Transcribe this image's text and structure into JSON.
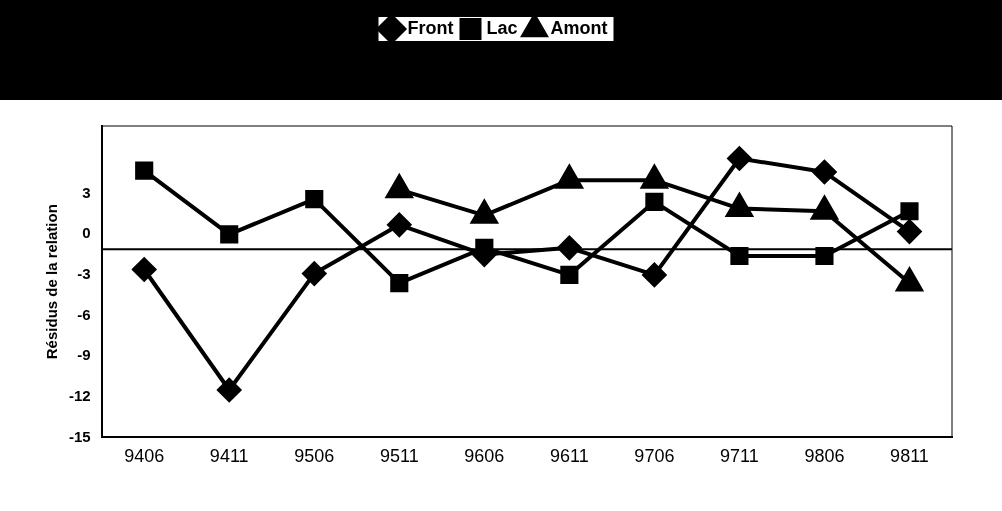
{
  "chart_data": {
    "type": "line",
    "ylabel": "Résidus de la relation",
    "categories": [
      "9406",
      "9411",
      "9506",
      "9511",
      "9606",
      "9611",
      "9706",
      "9711",
      "9806",
      "9811"
    ],
    "series": [
      {
        "name": "Front",
        "color": "#000000",
        "marker": "diamond",
        "values": [
          -2.6,
          -11.5,
          -2.9,
          0.7,
          -1.5,
          -1.0,
          -3.0,
          5.6,
          4.6,
          0.2
        ]
      },
      {
        "name": "Lac",
        "color": "#000000",
        "marker": "square",
        "values": [
          4.7,
          0,
          2.6,
          -3.6,
          -1.0,
          -3.0,
          2.4,
          -1.6,
          -1.6,
          1.7
        ]
      },
      {
        "name": "Amont",
        "color": "#000000",
        "marker": "triangle",
        "values": [
          null,
          null,
          null,
          3.3,
          1.4,
          4.0,
          4.0,
          1.9,
          1.7,
          -3.6
        ]
      }
    ],
    "ylim": [
      -15,
      8
    ],
    "yticks": [
      -15,
      -12,
      -9,
      -6,
      -3,
      0,
      3
    ],
    "ref_lines": [
      {
        "axis": "y",
        "value": -1.1,
        "color": "#000000"
      }
    ],
    "legend": "top",
    "grid": false
  }
}
